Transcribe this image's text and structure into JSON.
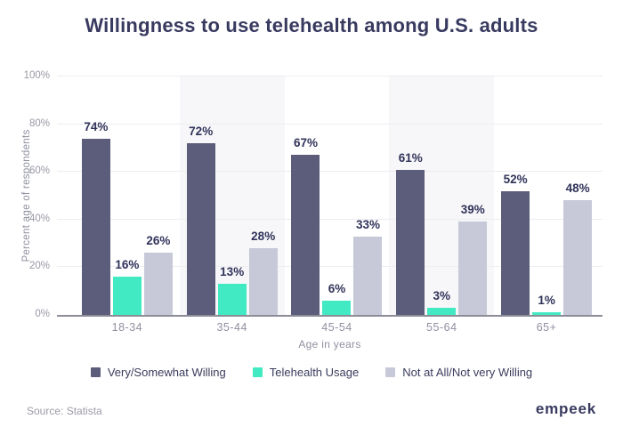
{
  "title": "Willingness to use telehealth among U.S. adults",
  "chart_data": {
    "type": "bar",
    "categories": [
      "18-34",
      "35-44",
      "45-54",
      "55-64",
      "65+"
    ],
    "series": [
      {
        "name": "Very/Somewhat Willing",
        "color": "#5b5d7a",
        "values": [
          74,
          72,
          67,
          61,
          52
        ]
      },
      {
        "name": "Telehealth Usage",
        "color": "#41eac2",
        "values": [
          16,
          13,
          6,
          3,
          1
        ]
      },
      {
        "name": "Not at All/Not very Willing",
        "color": "#c7c9d8",
        "values": [
          26,
          28,
          33,
          39,
          48
        ]
      }
    ],
    "value_label_suffix": "%",
    "xlabel": "Age in years",
    "ylabel": "Percent age of respondents",
    "ylim": [
      0,
      100
    ],
    "yticks": [
      "0%",
      "20%",
      "40%",
      "60%",
      "80%",
      "100%"
    ],
    "grid": true,
    "striped_categories": [
      "35-44",
      "55-64"
    ],
    "legend_position": "bottom"
  },
  "footer": {
    "source": "Source: Statista",
    "logo": "empeek"
  },
  "colors": {
    "title_text": "#383a5f",
    "axis_text": "#8f90a0",
    "value_label_text": "#31335a",
    "gridline": "#ededf2",
    "stripe": "#f7f7f9",
    "axis_line": "#8c8d99",
    "background": "#ffffff"
  }
}
